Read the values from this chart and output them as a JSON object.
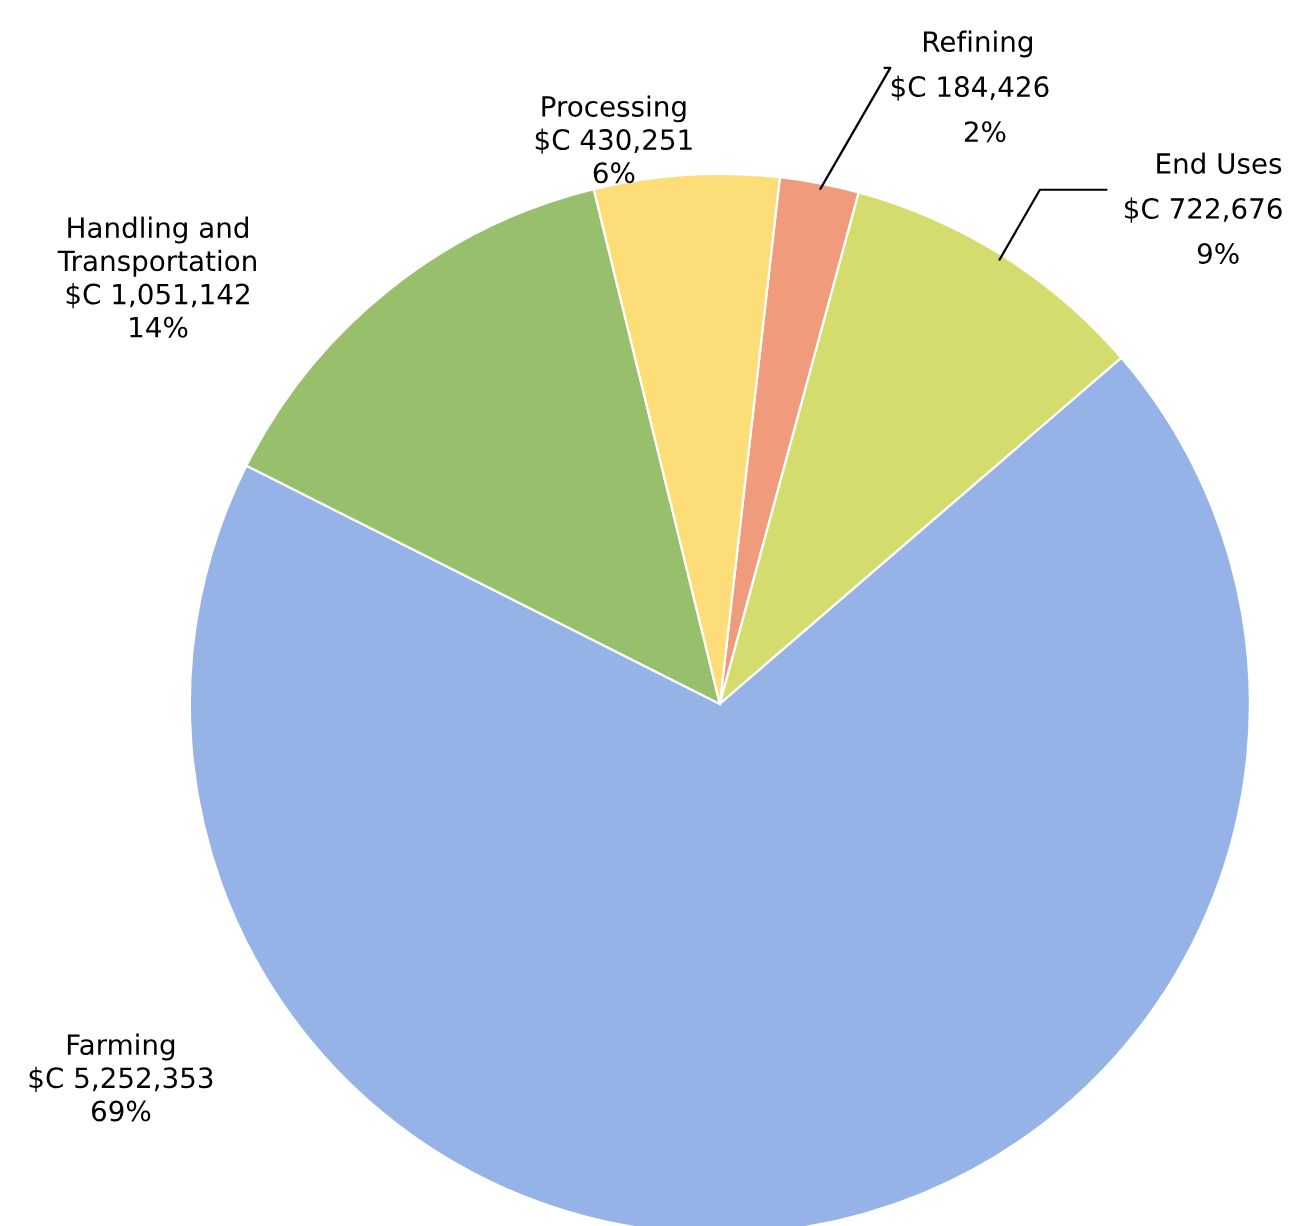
{
  "chart_data": {
    "type": "pie",
    "categories": [
      "Refining",
      "End Uses",
      "Farming",
      "Handling and\nTransportation",
      "Processing"
    ],
    "values": [
      184426,
      722676,
      5252353,
      1051142,
      430251
    ],
    "value_labels": [
      "$C 184,426\n2%",
      "$C 722,676\n9%",
      "$C 5,252,353\n69%",
      "$C 1,051,142\n14%",
      "$C 430,251\n6%"
    ],
    "colors": [
      "#f09c7c",
      "#d4dc6e",
      "#95b3e6",
      "#98c06c",
      "#fddd78"
    ]
  }
}
